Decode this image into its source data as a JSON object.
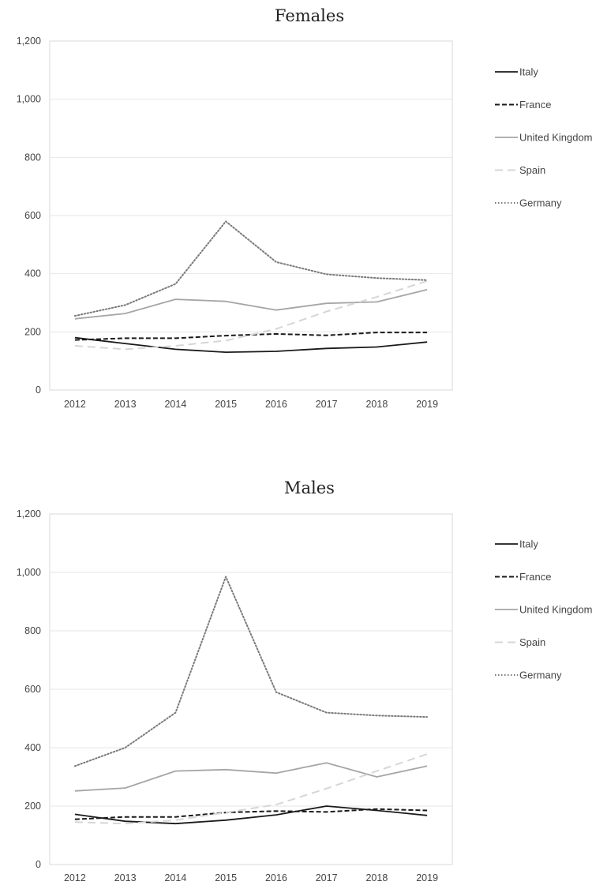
{
  "chart_data": [
    {
      "type": "line",
      "title": "Females",
      "xlabel": "",
      "ylabel": "",
      "x": [
        "2012",
        "2013",
        "2014",
        "2015",
        "2016",
        "2017",
        "2018",
        "2019"
      ],
      "y_ticks": [
        "0",
        "200",
        "400",
        "600",
        "800",
        "1,000",
        "1,200"
      ],
      "ylim": [
        0,
        1200
      ],
      "grid": true,
      "legend_placement": "right",
      "series": [
        {
          "name": "Italy",
          "style": "solid",
          "color": "#1a1a1a",
          "values": [
            180,
            160,
            140,
            130,
            133,
            143,
            148,
            165
          ]
        },
        {
          "name": "France",
          "style": "dashed",
          "color": "#1a1a1a",
          "values": [
            172,
            178,
            178,
            187,
            193,
            188,
            198,
            198
          ]
        },
        {
          "name": "United Kingdom",
          "style": "solid",
          "color": "#a6a6a6",
          "values": [
            245,
            263,
            312,
            305,
            275,
            298,
            303,
            345
          ]
        },
        {
          "name": "Spain",
          "style": "long-dashed",
          "color": "#d6d6d6",
          "values": [
            152,
            140,
            152,
            170,
            210,
            270,
            320,
            375
          ]
        },
        {
          "name": "Germany",
          "style": "dotted",
          "color": "#7a7a7a",
          "values": [
            255,
            292,
            365,
            580,
            440,
            398,
            385,
            378
          ]
        }
      ]
    },
    {
      "type": "line",
      "title": "Males",
      "xlabel": "",
      "ylabel": "",
      "x": [
        "2012",
        "2013",
        "2014",
        "2015",
        "2016",
        "2017",
        "2018",
        "2019"
      ],
      "y_ticks": [
        "0",
        "200",
        "400",
        "600",
        "800",
        "1,000",
        "1,200"
      ],
      "ylim": [
        0,
        1200
      ],
      "grid": true,
      "legend_placement": "right",
      "series": [
        {
          "name": "Italy",
          "style": "solid",
          "color": "#1a1a1a",
          "values": [
            172,
            148,
            140,
            152,
            170,
            200,
            185,
            168
          ]
        },
        {
          "name": "France",
          "style": "dashed",
          "color": "#1a1a1a",
          "values": [
            155,
            163,
            163,
            178,
            183,
            180,
            190,
            185
          ]
        },
        {
          "name": "United Kingdom",
          "style": "solid",
          "color": "#a6a6a6",
          "values": [
            252,
            262,
            320,
            325,
            313,
            348,
            300,
            337
          ]
        },
        {
          "name": "Spain",
          "style": "long-dashed",
          "color": "#d6d6d6",
          "values": [
            145,
            140,
            152,
            178,
            205,
            260,
            320,
            378
          ]
        },
        {
          "name": "Germany",
          "style": "dotted",
          "color": "#7a7a7a",
          "values": [
            337,
            400,
            520,
            985,
            590,
            520,
            510,
            505
          ]
        }
      ]
    }
  ]
}
